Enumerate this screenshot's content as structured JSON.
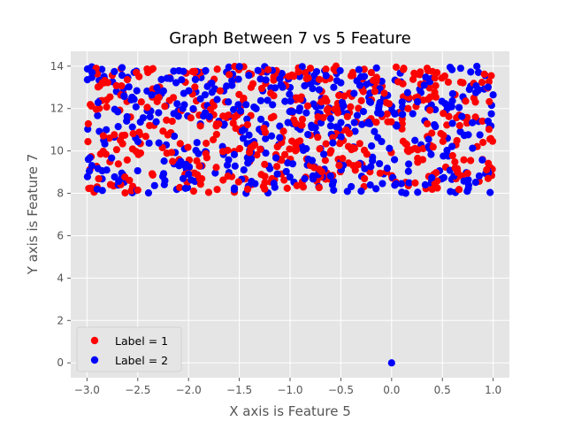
{
  "chart_data": {
    "type": "scatter",
    "title": "Graph Between 7 vs 5 Feature",
    "xlabel": "X axis is Feature 5",
    "ylabel": "Y axis is Feature 7",
    "xlim": [
      -3.16,
      1.16
    ],
    "ylim": [
      -0.7,
      14.7
    ],
    "xticks": [
      -3.0,
      -2.5,
      -2.0,
      -1.5,
      -1.0,
      -0.5,
      0.0,
      0.5,
      1.0
    ],
    "xtick_labels": [
      "−3.0",
      "−2.5",
      "−2.0",
      "−1.5",
      "−1.0",
      "−0.5",
      "0.0",
      "0.5",
      "1.0"
    ],
    "yticks": [
      0,
      2,
      4,
      6,
      8,
      10,
      12,
      14
    ],
    "ytick_labels": [
      "0",
      "2",
      "4",
      "6",
      "8",
      "10",
      "12",
      "14"
    ],
    "grid": true,
    "style": "ggplot",
    "legend_position": "lower left",
    "series": [
      {
        "name": "Label = 1",
        "color": "#ff0000",
        "cluster": {
          "x_range": [
            -3.0,
            1.0
          ],
          "y_range": [
            8.0,
            14.0
          ],
          "count": 500
        },
        "points": [
          [
            -2.91,
            13.9
          ],
          [
            -2.4,
            13.7
          ],
          [
            -1.6,
            13.6
          ],
          [
            -0.8,
            13.9
          ],
          [
            0.35,
            13.9
          ],
          [
            -1.95,
            8.1
          ],
          [
            -1.25,
            8.2
          ],
          [
            0.45,
            8.25
          ],
          [
            -2.5,
            8.15
          ],
          [
            0.95,
            8.7
          ],
          [
            0.9,
            10.4
          ]
        ]
      },
      {
        "name": "Label = 2",
        "color": "#0000ff",
        "cluster": {
          "x_range": [
            -3.0,
            1.0
          ],
          "y_range": [
            8.0,
            14.0
          ],
          "count": 500
        },
        "points": [
          [
            -2.95,
            13.7
          ],
          [
            -1.1,
            13.4
          ],
          [
            -0.3,
            8.1
          ],
          [
            0.1,
            8.05
          ],
          [
            -2.9,
            8.2
          ],
          [
            0.68,
            13.9
          ],
          [
            0.95,
            11.4
          ],
          [
            0.0,
            0.0
          ]
        ]
      }
    ],
    "outlier": {
      "x": 0.0,
      "y": 0.0,
      "series": "Label = 2"
    }
  }
}
